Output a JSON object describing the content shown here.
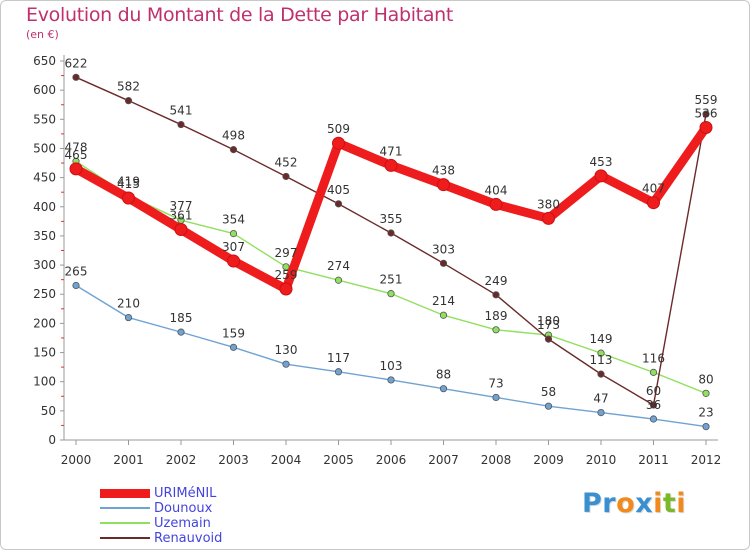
{
  "title": "Evolution du Montant de la Dette par Habitant",
  "subtitle": "(en €)",
  "logo": {
    "text": "Proxiti",
    "letters": [
      {
        "ch": "P",
        "color": "#3a8fd0"
      },
      {
        "ch": "r",
        "color": "#3a8fd0"
      },
      {
        "ch": "o",
        "color": "#f08a1c"
      },
      {
        "ch": "x",
        "color": "#3a8fd0"
      },
      {
        "ch": "i",
        "color": "#f08a1c"
      },
      {
        "ch": "t",
        "color": "#7ab82a"
      },
      {
        "ch": "i",
        "color": "#f08a1c"
      }
    ]
  },
  "chart_data": {
    "type": "line",
    "title": "Evolution du Montant de la Dette par Habitant",
    "ylabel": "(en €)",
    "x": [
      2000,
      2001,
      2002,
      2003,
      2004,
      2005,
      2006,
      2007,
      2008,
      2009,
      2010,
      2011,
      2012
    ],
    "ylim": [
      0,
      650
    ],
    "yticks": [
      0,
      50,
      100,
      150,
      200,
      250,
      300,
      350,
      400,
      450,
      500,
      550,
      600,
      650
    ],
    "grid": false,
    "legend": "bottom-left",
    "series": [
      {
        "name": "URIMéNIL",
        "color": "#ee1c1c",
        "values": [
          465,
          415,
          361,
          307,
          259,
          509,
          471,
          438,
          404,
          380,
          453,
          407,
          536
        ]
      },
      {
        "name": "Dounoux",
        "color": "#6fa3d4",
        "values": [
          265,
          210,
          185,
          159,
          130,
          117,
          103,
          88,
          73,
          58,
          47,
          36,
          23
        ]
      },
      {
        "name": "Uzemain",
        "color": "#90e060",
        "values": [
          478,
          419,
          377,
          354,
          297,
          274,
          251,
          214,
          189,
          180,
          149,
          116,
          80
        ]
      },
      {
        "name": "Renauvoid",
        "color": "#6b2a2a",
        "values": [
          622,
          582,
          541,
          498,
          452,
          405,
          355,
          303,
          249,
          173,
          113,
          60,
          559
        ]
      }
    ]
  }
}
